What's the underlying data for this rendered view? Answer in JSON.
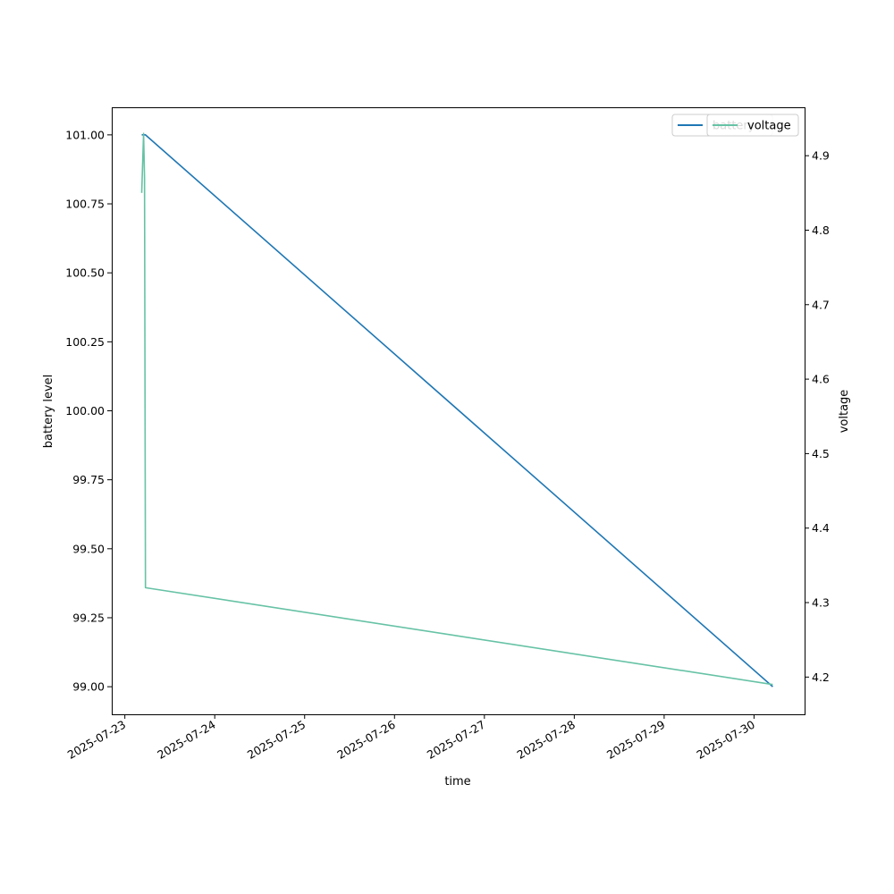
{
  "chart_data": {
    "type": "line",
    "title": "",
    "xlabel": "time",
    "ylabel": "battery level",
    "y2label": "voltage",
    "x_ticks": [
      "2025-07-23",
      "2025-07-24",
      "2025-07-25",
      "2025-07-26",
      "2025-07-27",
      "2025-07-28",
      "2025-07-29",
      "2025-07-30"
    ],
    "xlim": [
      "2025-07-22T20:30",
      "2025-07-30T13:30"
    ],
    "ylim": [
      98.9,
      101.1
    ],
    "y_ticks": [
      "99.00",
      "99.25",
      "99.50",
      "99.75",
      "100.00",
      "100.25",
      "100.50",
      "100.75",
      "101.00"
    ],
    "y2lim": [
      4.15,
      4.965
    ],
    "y2_ticks": [
      "4.2",
      "4.3",
      "4.4",
      "4.5",
      "4.6",
      "4.7",
      "4.8",
      "4.9"
    ],
    "grid": false,
    "legend_position": "top-right",
    "series": [
      {
        "name": "battery",
        "axis": "left",
        "color": "#1f77b4",
        "points": [
          {
            "x": "2025-07-23T04:30",
            "y": 101.0
          },
          {
            "x": "2025-07-23T05:30",
            "y": 101.0
          },
          {
            "x": "2025-07-30T05:00",
            "y": 99.0
          }
        ]
      },
      {
        "name": "voltage",
        "axis": "right",
        "color": "#66c2a5",
        "points": [
          {
            "x": "2025-07-23T04:30",
            "y": 4.85
          },
          {
            "x": "2025-07-23T05:00",
            "y": 4.93
          },
          {
            "x": "2025-07-23T05:15",
            "y": 4.87
          },
          {
            "x": "2025-07-23T05:30",
            "y": 4.32
          },
          {
            "x": "2025-07-30T05:00",
            "y": 4.19
          }
        ]
      }
    ]
  }
}
